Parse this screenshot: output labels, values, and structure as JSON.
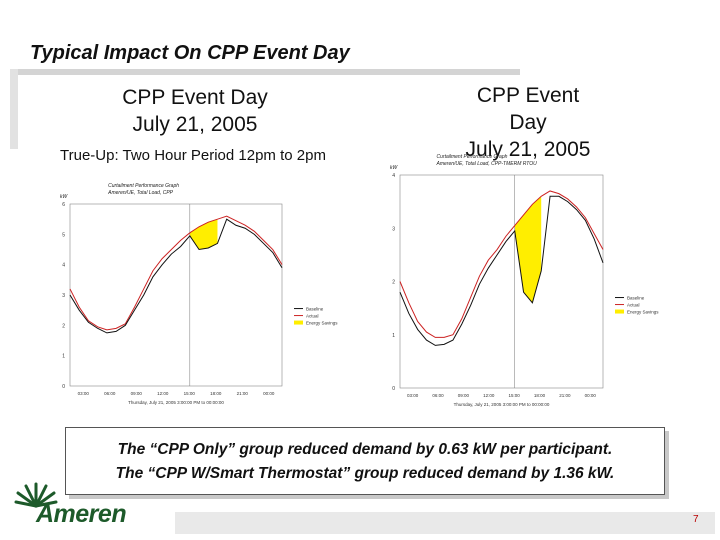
{
  "slide": {
    "title": "Typical Impact On CPP Event Day",
    "page_number": "7"
  },
  "left_panel": {
    "heading_line1": "CPP Event Day",
    "heading_line2": "July 21, 2005",
    "trueup": "True-Up: Two Hour Period 12pm to 2pm"
  },
  "right_panel": {
    "heading_line1": "CPP Event Day",
    "heading_line2": "July 21, 2005"
  },
  "callout": {
    "line1": "The “CPP Only” group reduced demand by 0.63 kW per participant.",
    "line2": "The “CPP W/Smart Thermostat” group reduced demand by 1.36 kW."
  },
  "logo": {
    "text": "Ameren",
    "icon": "ameren-starburst-icon"
  },
  "colors": {
    "baseline": "#cc2222",
    "actual": "#111111",
    "savings": "#ffee00",
    "logo": "#1d5a2a"
  },
  "chart_data": [
    {
      "type": "line",
      "title": "Curtailment Performance Graph",
      "subtitle": "Ameren/UE, Total Load, CPP",
      "ylabel": "kW",
      "ylim": [
        0,
        6
      ],
      "yticks": [
        "0",
        "1",
        "2",
        "3",
        "4",
        "5",
        "6"
      ],
      "xticks": [
        "03:00",
        "06:00",
        "09:00",
        "12:00",
        "15:00",
        "18:00",
        "21:00",
        "00:00"
      ],
      "footnote": "Thursday, July 21, 2005 3:00:00 PM to 00:00:00",
      "legend": [
        "Baseline",
        "Actual",
        "Energy Savings"
      ],
      "legend_position": "right",
      "x": [
        1,
        2,
        3,
        4,
        5,
        6,
        7,
        8,
        9,
        10,
        11,
        12,
        13,
        14,
        15,
        16,
        17,
        18,
        19,
        20,
        21,
        22,
        23,
        24
      ],
      "series": [
        {
          "name": "Baseline",
          "values": [
            3.2,
            2.6,
            2.15,
            1.95,
            1.85,
            1.9,
            2.05,
            2.6,
            3.2,
            3.8,
            4.2,
            4.5,
            4.8,
            5.05,
            5.25,
            5.4,
            5.5,
            5.6,
            5.45,
            5.3,
            5.1,
            4.8,
            4.5,
            4.0
          ]
        },
        {
          "name": "Actual",
          "values": [
            3.0,
            2.5,
            2.1,
            1.9,
            1.75,
            1.8,
            2.0,
            2.5,
            3.0,
            3.6,
            4.0,
            4.35,
            4.6,
            4.95,
            4.5,
            4.55,
            4.7,
            5.5,
            5.3,
            5.2,
            5.0,
            4.7,
            4.4,
            3.9
          ]
        }
      ],
      "savings_window": [
        14,
        17
      ]
    },
    {
      "type": "line",
      "title": "Curtailment Performance Graph",
      "subtitle": "Ameren/UE, Total Load, CPP-TMERM RTOU",
      "ylabel": "kW",
      "ylim": [
        0,
        4
      ],
      "yticks": [
        "0",
        "1",
        "2",
        "3",
        "4"
      ],
      "xticks": [
        "03:00",
        "06:00",
        "09:00",
        "12:00",
        "15:00",
        "18:00",
        "21:00",
        "00:00"
      ],
      "footnote": "Thursday, July 21, 2005 3:00:00 PM to 00:00:00",
      "legend": [
        "Baseline",
        "Actual",
        "Energy Savings"
      ],
      "legend_position": "right",
      "x": [
        1,
        2,
        3,
        4,
        5,
        6,
        7,
        8,
        9,
        10,
        11,
        12,
        13,
        14,
        15,
        16,
        17,
        18,
        19,
        20,
        21,
        22,
        23,
        24
      ],
      "series": [
        {
          "name": "Baseline",
          "values": [
            2.0,
            1.6,
            1.25,
            1.05,
            0.95,
            0.95,
            1.0,
            1.3,
            1.7,
            2.1,
            2.4,
            2.6,
            2.85,
            3.05,
            3.25,
            3.45,
            3.6,
            3.7,
            3.65,
            3.55,
            3.4,
            3.2,
            2.9,
            2.6
          ]
        },
        {
          "name": "Actual",
          "values": [
            1.8,
            1.4,
            1.1,
            0.9,
            0.8,
            0.82,
            0.9,
            1.2,
            1.55,
            1.95,
            2.25,
            2.5,
            2.75,
            2.95,
            1.8,
            1.6,
            2.2,
            3.6,
            3.6,
            3.5,
            3.35,
            3.15,
            2.8,
            2.35
          ]
        }
      ],
      "savings_window": [
        14,
        17
      ]
    }
  ]
}
